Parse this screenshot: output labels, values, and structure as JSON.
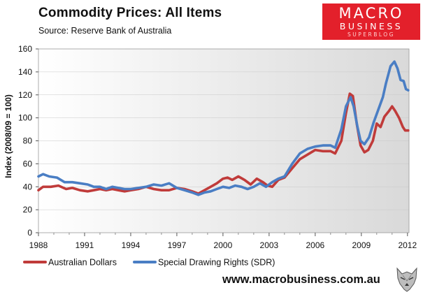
{
  "header": {
    "title": "Commodity Prices: All Items",
    "source": "Source: Reserve Bank of Australia"
  },
  "logo": {
    "line1": "MACRO",
    "line2": "BUSINESS",
    "line3": "SUPERBLOG"
  },
  "footer": {
    "url": "www.macrobusiness.com.au",
    "mascot_icon": "wolf-icon"
  },
  "colors": {
    "aud": "#c03b3a",
    "sdr": "#4a7ec4",
    "logo_bg": "#e3202b"
  },
  "chart_data": {
    "type": "line",
    "title": "Commodity Prices: All Items",
    "xlabel": "",
    "ylabel": "Index (2008/09 = 100)",
    "xlim": [
      1988,
      2012.1
    ],
    "ylim": [
      0,
      160
    ],
    "x_ticks": [
      1988,
      1991,
      1994,
      1997,
      2000,
      2003,
      2006,
      2009,
      2012
    ],
    "y_ticks": [
      0,
      20,
      40,
      60,
      80,
      100,
      120,
      140,
      160
    ],
    "legend_position": "bottom-left",
    "series": [
      {
        "name": "Australian Dollars",
        "color": "#c03b3a",
        "points": [
          [
            1988.0,
            37
          ],
          [
            1988.3,
            40
          ],
          [
            1988.8,
            40
          ],
          [
            1989.3,
            41
          ],
          [
            1989.8,
            38
          ],
          [
            1990.2,
            39
          ],
          [
            1990.7,
            37
          ],
          [
            1991.2,
            36
          ],
          [
            1991.6,
            37
          ],
          [
            1992.0,
            38
          ],
          [
            1992.4,
            37
          ],
          [
            1992.8,
            38
          ],
          [
            1993.2,
            37
          ],
          [
            1993.6,
            36
          ],
          [
            1994.0,
            37
          ],
          [
            1994.5,
            38
          ],
          [
            1995.0,
            40
          ],
          [
            1995.5,
            38
          ],
          [
            1996.0,
            37
          ],
          [
            1996.5,
            37
          ],
          [
            1997.0,
            39
          ],
          [
            1997.5,
            38
          ],
          [
            1998.0,
            36
          ],
          [
            1998.4,
            34
          ],
          [
            1998.8,
            37
          ],
          [
            1999.2,
            40
          ],
          [
            1999.6,
            43
          ],
          [
            2000.0,
            47
          ],
          [
            2000.3,
            48
          ],
          [
            2000.6,
            46
          ],
          [
            2001.0,
            49
          ],
          [
            2001.4,
            46
          ],
          [
            2001.8,
            42
          ],
          [
            2002.2,
            47
          ],
          [
            2002.6,
            44
          ],
          [
            2002.9,
            41
          ],
          [
            2003.2,
            40
          ],
          [
            2003.6,
            46
          ],
          [
            2004.0,
            48
          ],
          [
            2004.5,
            56
          ],
          [
            2005.0,
            64
          ],
          [
            2005.5,
            68
          ],
          [
            2006.0,
            72
          ],
          [
            2006.5,
            71
          ],
          [
            2007.0,
            71
          ],
          [
            2007.3,
            69
          ],
          [
            2007.7,
            80
          ],
          [
            2008.0,
            104
          ],
          [
            2008.25,
            121
          ],
          [
            2008.45,
            119
          ],
          [
            2008.7,
            95
          ],
          [
            2008.95,
            76
          ],
          [
            2009.2,
            70
          ],
          [
            2009.45,
            72
          ],
          [
            2009.75,
            80
          ],
          [
            2010.0,
            95
          ],
          [
            2010.25,
            92
          ],
          [
            2010.5,
            101
          ],
          [
            2010.8,
            106
          ],
          [
            2011.0,
            110
          ],
          [
            2011.2,
            106
          ],
          [
            2011.45,
            100
          ],
          [
            2011.7,
            92
          ],
          [
            2011.85,
            89
          ],
          [
            2012.05,
            89
          ]
        ]
      },
      {
        "name": "Special Drawing Rights (SDR)",
        "color": "#4a7ec4",
        "points": [
          [
            1988.0,
            49
          ],
          [
            1988.3,
            51
          ],
          [
            1988.7,
            49
          ],
          [
            1989.2,
            48
          ],
          [
            1989.7,
            44
          ],
          [
            1990.2,
            44
          ],
          [
            1990.7,
            43
          ],
          [
            1991.2,
            42
          ],
          [
            1991.6,
            40
          ],
          [
            1992.0,
            40
          ],
          [
            1992.4,
            38
          ],
          [
            1992.8,
            40
          ],
          [
            1993.2,
            39
          ],
          [
            1993.6,
            38
          ],
          [
            1994.0,
            38
          ],
          [
            1994.5,
            39
          ],
          [
            1995.0,
            40
          ],
          [
            1995.5,
            42
          ],
          [
            1996.0,
            41
          ],
          [
            1996.5,
            43
          ],
          [
            1997.0,
            39
          ],
          [
            1997.5,
            37
          ],
          [
            1998.0,
            35
          ],
          [
            1998.4,
            33
          ],
          [
            1998.8,
            35
          ],
          [
            1999.2,
            36
          ],
          [
            1999.6,
            38
          ],
          [
            2000.0,
            40
          ],
          [
            2000.4,
            39
          ],
          [
            2000.8,
            41
          ],
          [
            2001.2,
            40
          ],
          [
            2001.6,
            38
          ],
          [
            2002.0,
            40
          ],
          [
            2002.4,
            43
          ],
          [
            2002.8,
            40
          ],
          [
            2003.2,
            44
          ],
          [
            2003.6,
            47
          ],
          [
            2004.0,
            49
          ],
          [
            2004.5,
            60
          ],
          [
            2005.0,
            69
          ],
          [
            2005.5,
            73
          ],
          [
            2006.0,
            75
          ],
          [
            2006.5,
            76
          ],
          [
            2007.0,
            76
          ],
          [
            2007.3,
            74
          ],
          [
            2007.7,
            90
          ],
          [
            2008.0,
            110
          ],
          [
            2008.3,
            118
          ],
          [
            2008.5,
            110
          ],
          [
            2008.75,
            92
          ],
          [
            2008.95,
            80
          ],
          [
            2009.2,
            77
          ],
          [
            2009.5,
            83
          ],
          [
            2009.8,
            96
          ],
          [
            2010.1,
            107
          ],
          [
            2010.4,
            118
          ],
          [
            2010.6,
            130
          ],
          [
            2010.9,
            145
          ],
          [
            2011.15,
            149
          ],
          [
            2011.35,
            143
          ],
          [
            2011.55,
            133
          ],
          [
            2011.75,
            132
          ],
          [
            2011.9,
            125
          ],
          [
            2012.05,
            124
          ]
        ]
      }
    ]
  }
}
